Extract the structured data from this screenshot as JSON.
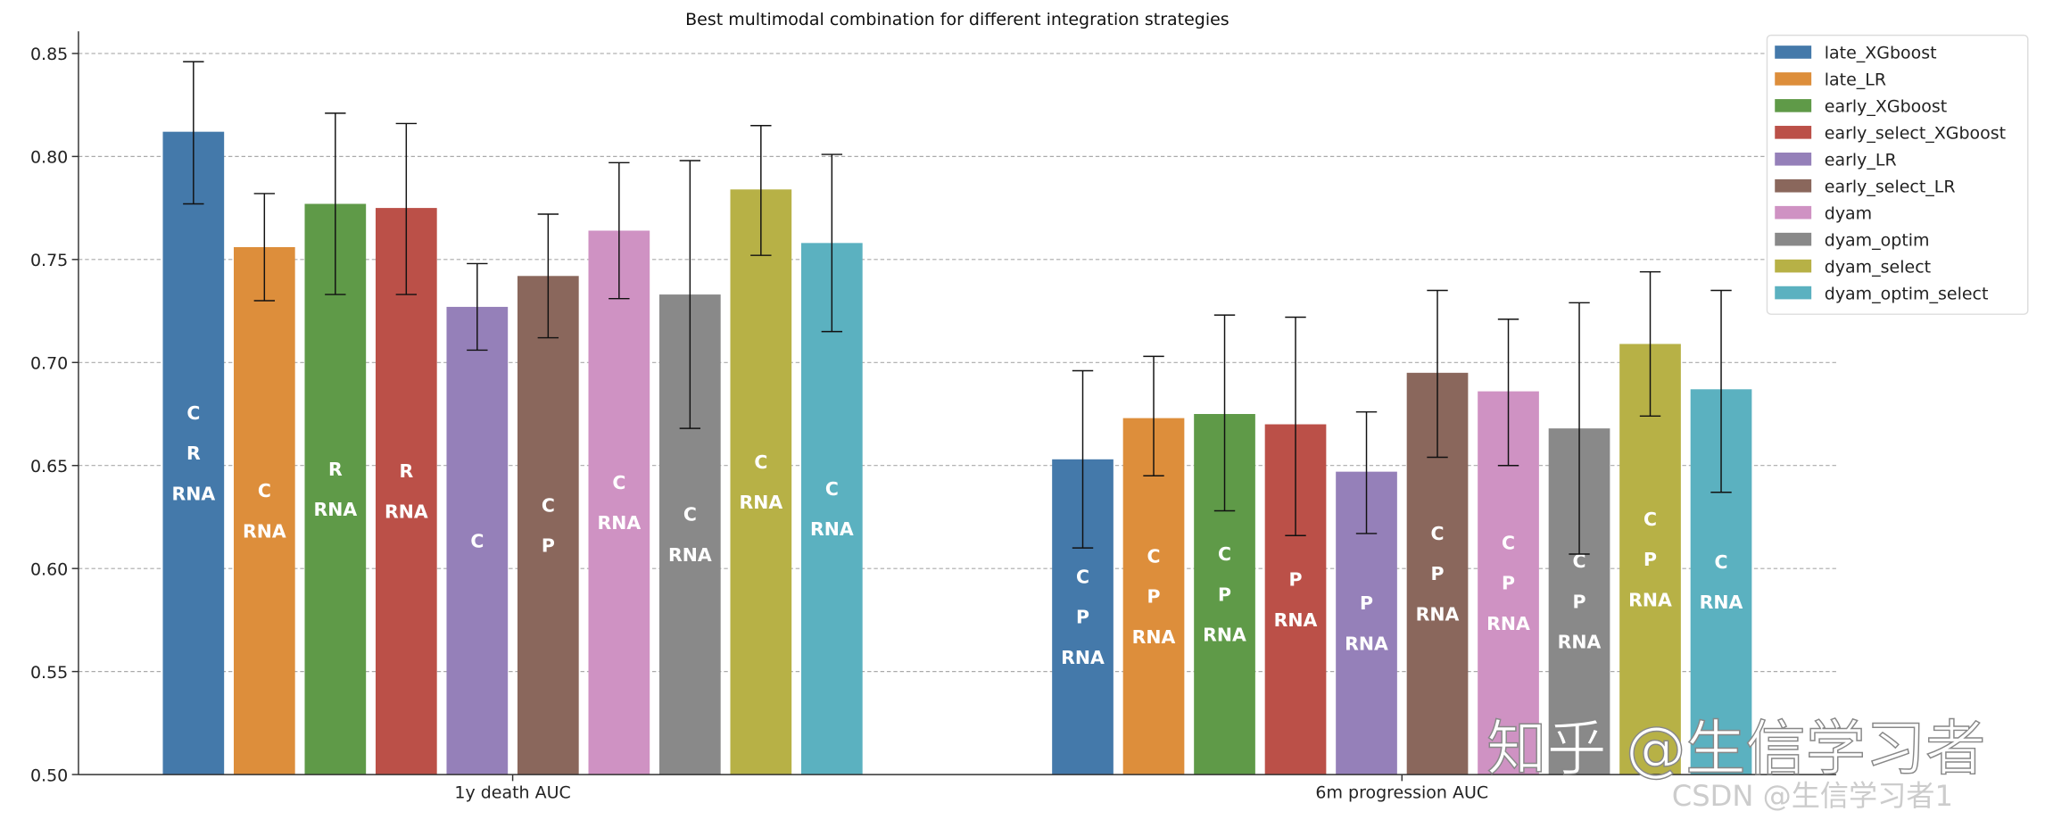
{
  "chart_data": {
    "type": "bar",
    "title": "Best multimodal combination for different integration strategies",
    "xlabel": "",
    "ylabel": "",
    "ylim": [
      0.5,
      0.86
    ],
    "yticks": [
      "0.50",
      "0.55",
      "0.60",
      "0.65",
      "0.70",
      "0.75",
      "0.80",
      "0.85"
    ],
    "grid": "horizontal dashed",
    "legend_position": "top-right",
    "categories": [
      "1y death AUC",
      "6m progression AUC"
    ],
    "series": [
      {
        "name": "late_XGboost",
        "color": "#4479aa",
        "values": [
          0.812,
          0.653
        ],
        "err_low": [
          0.777,
          0.61
        ],
        "err_high": [
          0.846,
          0.696
        ],
        "labels": [
          [
            "C",
            "R",
            "RNA"
          ],
          [
            "C",
            "P",
            "RNA"
          ]
        ]
      },
      {
        "name": "late_LR",
        "color": "#dd8e3b",
        "values": [
          0.756,
          0.673
        ],
        "err_low": [
          0.73,
          0.645
        ],
        "err_high": [
          0.782,
          0.703
        ],
        "labels": [
          [
            "C",
            "RNA"
          ],
          [
            "C",
            "P",
            "RNA"
          ]
        ]
      },
      {
        "name": "early_XGboost",
        "color": "#5f9a48",
        "values": [
          0.777,
          0.675
        ],
        "err_low": [
          0.733,
          0.628
        ],
        "err_high": [
          0.821,
          0.723
        ],
        "labels": [
          [
            "R",
            "RNA"
          ],
          [
            "C",
            "P",
            "RNA"
          ]
        ]
      },
      {
        "name": "early_select_XGboost",
        "color": "#bb5048",
        "values": [
          0.775,
          0.67
        ],
        "err_low": [
          0.733,
          0.616
        ],
        "err_high": [
          0.816,
          0.722
        ],
        "labels": [
          [
            "R",
            "RNA"
          ],
          [
            "P",
            "RNA"
          ]
        ]
      },
      {
        "name": "early_LR",
        "color": "#9580b9",
        "values": [
          0.727,
          0.647
        ],
        "err_low": [
          0.706,
          0.617
        ],
        "err_high": [
          0.748,
          0.676
        ],
        "labels": [
          [
            "C"
          ],
          [
            "P",
            "RNA"
          ]
        ]
      },
      {
        "name": "early_select_LR",
        "color": "#8a675c",
        "values": [
          0.742,
          0.695
        ],
        "err_low": [
          0.712,
          0.654
        ],
        "err_high": [
          0.772,
          0.735
        ],
        "labels": [
          [
            "C",
            "P"
          ],
          [
            "C",
            "P",
            "RNA"
          ]
        ]
      },
      {
        "name": "dyam",
        "color": "#cf92c3",
        "values": [
          0.764,
          0.686
        ],
        "err_low": [
          0.731,
          0.65
        ],
        "err_high": [
          0.797,
          0.721
        ],
        "labels": [
          [
            "C",
            "RNA"
          ],
          [
            "C",
            "P",
            "RNA"
          ]
        ]
      },
      {
        "name": "dyam_optim",
        "color": "#898989",
        "values": [
          0.733,
          0.668
        ],
        "err_low": [
          0.668,
          0.607
        ],
        "err_high": [
          0.798,
          0.729
        ],
        "labels": [
          [
            "C",
            "RNA"
          ],
          [
            "C",
            "P",
            "RNA"
          ]
        ]
      },
      {
        "name": "dyam_select",
        "color": "#b7b146",
        "values": [
          0.784,
          0.709
        ],
        "err_low": [
          0.752,
          0.674
        ],
        "err_high": [
          0.815,
          0.744
        ],
        "labels": [
          [
            "C",
            "RNA"
          ],
          [
            "C",
            "P",
            "RNA"
          ]
        ]
      },
      {
        "name": "dyam_optim_select",
        "color": "#5bb1c0",
        "values": [
          0.758,
          0.687
        ],
        "err_low": [
          0.715,
          0.637
        ],
        "err_high": [
          0.801,
          0.735
        ],
        "labels": [
          [
            "C",
            "RNA"
          ],
          [
            "C",
            "RNA"
          ]
        ]
      }
    ]
  },
  "watermark": {
    "zhihu": "知乎 @生信学习者",
    "csdn": "CSDN @生信学习者1"
  }
}
